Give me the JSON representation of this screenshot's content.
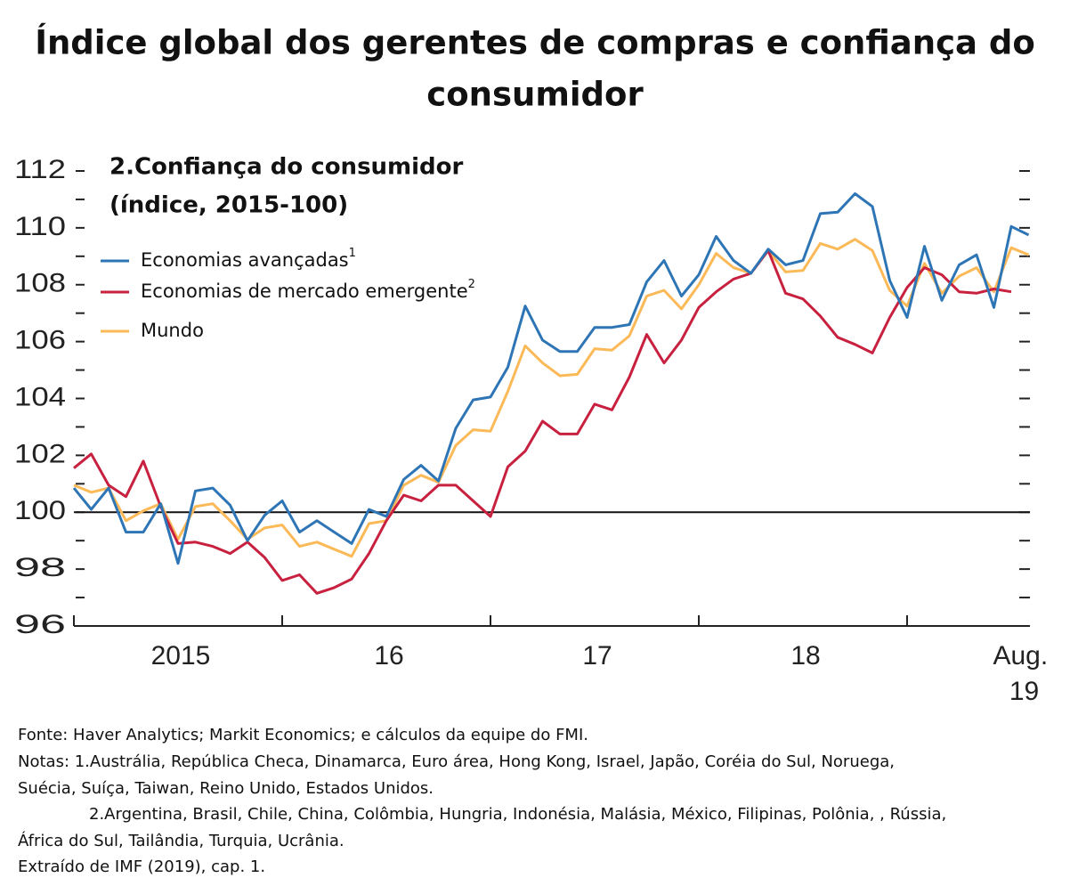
{
  "chart_data": {
    "type": "line",
    "title": [
      "Índice global dos gerentes de compras e confiança do",
      "consumidor"
    ],
    "subtitle": [
      "2.Confiança do consumidor",
      "(índice, 2015-100)"
    ],
    "categories": [
      null,
      null,
      null,
      null,
      null,
      null,
      "2015",
      null,
      null,
      null,
      null,
      null,
      null,
      null,
      null,
      null,
      null,
      null,
      "16",
      null,
      null,
      null,
      null,
      null,
      null,
      null,
      null,
      null,
      null,
      null,
      "17",
      null,
      null,
      null,
      null,
      null,
      null,
      null,
      null,
      null,
      null,
      null,
      "18",
      null,
      null,
      null,
      null,
      null,
      null,
      null,
      null,
      null,
      null,
      null,
      null,
      "Aug. 19"
    ],
    "ylim": [
      96,
      112
    ],
    "yticks": [
      96,
      98,
      100,
      102,
      104,
      106,
      108,
      110,
      112
    ],
    "yticks_minor": [
      97,
      99,
      101,
      103,
      105,
      107,
      109,
      111
    ],
    "hline": 100,
    "series": [
      {
        "name": "Economias avançadas",
        "note": "1",
        "color": "#2e75b6",
        "values": [
          100.85,
          100.1,
          100.85,
          99.3,
          99.3,
          100.3,
          98.2,
          100.75,
          100.85,
          100.25,
          99.0,
          99.9,
          100.4,
          99.3,
          99.7,
          99.3,
          98.9,
          100.1,
          99.85,
          101.15,
          101.65,
          101.1,
          102.95,
          103.95,
          104.05,
          105.1,
          107.25,
          106.05,
          105.65,
          105.65,
          106.5,
          106.5,
          106.6,
          108.1,
          108.85,
          107.6,
          108.35,
          109.7,
          108.85,
          108.4,
          109.25,
          108.7,
          108.85,
          110.5,
          110.55,
          111.2,
          110.75,
          108.15,
          106.85,
          109.35,
          107.45,
          108.7,
          109.05,
          107.2,
          110.05,
          109.75
        ]
      },
      {
        "name": "Economias de mercado emergente",
        "note": "2",
        "color": "#c8203f",
        "values": [
          101.55,
          102.05,
          100.95,
          100.55,
          101.8,
          100.2,
          98.9,
          98.95,
          98.8,
          98.55,
          98.95,
          98.4,
          97.6,
          97.8,
          97.15,
          97.35,
          97.65,
          98.55,
          99.7,
          100.6,
          100.4,
          100.95,
          100.95,
          100.4,
          99.85,
          101.6,
          102.15,
          103.2,
          102.75,
          102.75,
          103.8,
          103.6,
          104.75,
          106.25,
          105.25,
          106.05,
          107.2,
          107.75,
          108.2,
          108.4,
          109.2,
          107.7,
          107.5,
          106.9,
          106.15,
          105.9,
          105.6,
          106.85,
          107.9,
          108.6,
          108.35,
          107.75,
          107.7,
          107.85,
          107.75,
          null
        ]
      },
      {
        "name": "Mundo",
        "color": "#fbb958",
        "values": [
          100.95,
          100.7,
          100.85,
          99.7,
          100.05,
          100.3,
          99.05,
          100.2,
          100.3,
          99.7,
          99.05,
          99.45,
          99.55,
          98.8,
          98.95,
          98.7,
          98.45,
          99.6,
          99.7,
          100.95,
          101.3,
          101.05,
          102.35,
          102.9,
          102.85,
          104.25,
          105.85,
          105.25,
          104.8,
          104.85,
          105.75,
          105.7,
          106.2,
          107.6,
          107.8,
          107.15,
          108.0,
          109.1,
          108.6,
          108.4,
          109.2,
          108.45,
          108.5,
          109.45,
          109.25,
          109.6,
          109.2,
          107.8,
          107.25,
          108.75,
          107.7,
          108.3,
          108.6,
          107.75,
          109.3,
          109.05
        ]
      }
    ],
    "footer": [
      "Fonte: Haver Analytics; Markit Economics; e cálculos da equipe do FMI.",
      "Notas: 1.Austrália, República Checa, Dinamarca, Euro área, Hong Kong, Israel, Japão, Coréia do Sul, Noruega,",
      "Suécia, Suíça, Taiwan, Reino Unido, Estados Unidos.",
      "2.Argentina, Brasil, Chile, China, Colômbia, Hungria, Indonésia, Malásia, México, Filipinas, Polônia, , Rússia,",
      "África do Sul, Tailândia, Turquia, Ucrânia.",
      "Extraído de IMF (2019), cap. 1."
    ]
  }
}
